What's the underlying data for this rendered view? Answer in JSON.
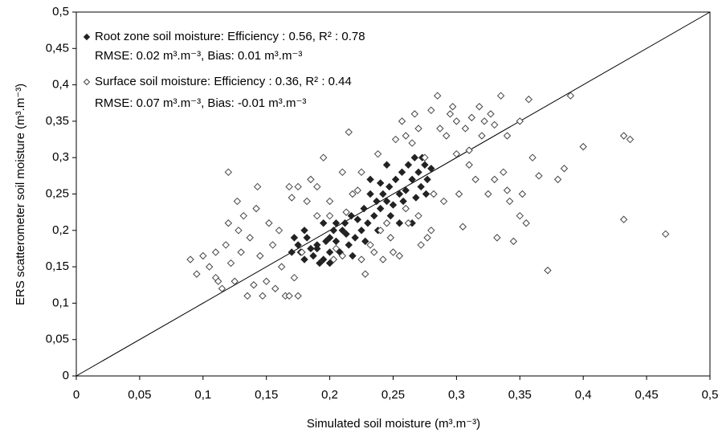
{
  "chart_data": {
    "type": "scatter",
    "x_label": "Simulated soil moisture (m³.m⁻³)",
    "y_label": "ERS scatterometer soil moisture (m³.m⁻³)",
    "xlim": [
      0,
      0.5
    ],
    "ylim": [
      0,
      0.5
    ],
    "xticks": [
      0,
      {
        "value": 0.05,
        "label": "0,05"
      },
      {
        "value": 0.1,
        "label": "0,1"
      },
      {
        "value": 0.15,
        "label": "0,15"
      },
      {
        "value": 0.2,
        "label": "0,2"
      },
      {
        "value": 0.25,
        "label": "0,25"
      },
      {
        "value": 0.3,
        "label": "0,3"
      },
      {
        "value": 0.35,
        "label": "0,35"
      },
      {
        "value": 0.4,
        "label": "0,4"
      },
      {
        "value": 0.45,
        "label": "0,45"
      },
      {
        "value": 0.5,
        "label": "0,5"
      }
    ],
    "yticks": [
      0,
      {
        "value": 0.05,
        "label": "0,05"
      },
      {
        "value": 0.1,
        "label": "0,1"
      },
      {
        "value": 0.15,
        "label": "0,15"
      },
      {
        "value": 0.2,
        "label": "0,2"
      },
      {
        "value": 0.25,
        "label": "0,25"
      },
      {
        "value": 0.3,
        "label": "0,3"
      },
      {
        "value": 0.35,
        "label": "0,35"
      },
      {
        "value": 0.4,
        "label": "0,4"
      },
      {
        "value": 0.45,
        "label": "0,45"
      },
      {
        "value": 0.5,
        "label": "0,5"
      }
    ],
    "identity_line": true,
    "legend_position": "upper-left",
    "series": [
      {
        "name": "Root zone soil moisture: Efficiency : 0.56, R² : 0.78",
        "color": "#222222",
        "marker": "filled-diamond",
        "x": [
          0.175,
          0.177,
          0.18,
          0.182,
          0.185,
          0.187,
          0.19,
          0.192,
          0.195,
          0.197,
          0.2,
          0.2,
          0.203,
          0.205,
          0.208,
          0.21,
          0.212,
          0.215,
          0.217,
          0.22,
          0.222,
          0.225,
          0.227,
          0.23,
          0.232,
          0.235,
          0.237,
          0.24,
          0.242,
          0.245,
          0.247,
          0.25,
          0.252,
          0.255,
          0.257,
          0.26,
          0.262,
          0.265,
          0.267,
          0.27,
          0.272,
          0.275,
          0.277,
          0.28,
          0.18,
          0.19,
          0.195,
          0.205,
          0.213,
          0.218,
          0.228,
          0.238,
          0.248,
          0.258,
          0.268,
          0.265,
          0.255,
          0.245,
          0.273,
          0.276,
          0.17,
          0.172,
          0.2,
          0.232,
          0.24
        ],
        "values": [
          0.18,
          0.17,
          0.16,
          0.19,
          0.175,
          0.165,
          0.18,
          0.155,
          0.16,
          0.185,
          0.17,
          0.19,
          0.2,
          0.185,
          0.17,
          0.2,
          0.21,
          0.18,
          0.22,
          0.19,
          0.215,
          0.2,
          0.23,
          0.21,
          0.25,
          0.22,
          0.24,
          0.23,
          0.25,
          0.24,
          0.26,
          0.235,
          0.27,
          0.25,
          0.28,
          0.255,
          0.29,
          0.27,
          0.3,
          0.28,
          0.26,
          0.29,
          0.27,
          0.285,
          0.2,
          0.175,
          0.21,
          0.21,
          0.195,
          0.165,
          0.185,
          0.2,
          0.22,
          0.24,
          0.245,
          0.21,
          0.21,
          0.29,
          0.3,
          0.25,
          0.17,
          0.19,
          0.155,
          0.27,
          0.265
        ]
      },
      {
        "name": "Surface soil moisture:  Efficiency : 0.36, R² : 0.44",
        "color": "#444444",
        "marker": "open-diamond",
        "x": [
          0.09,
          0.095,
          0.1,
          0.105,
          0.11,
          0.11,
          0.112,
          0.115,
          0.118,
          0.12,
          0.12,
          0.122,
          0.125,
          0.127,
          0.128,
          0.13,
          0.132,
          0.135,
          0.137,
          0.14,
          0.142,
          0.143,
          0.145,
          0.147,
          0.15,
          0.152,
          0.155,
          0.157,
          0.16,
          0.162,
          0.165,
          0.168,
          0.17,
          0.172,
          0.175,
          0.178,
          0.182,
          0.185,
          0.19,
          0.195,
          0.2,
          0.203,
          0.205,
          0.21,
          0.213,
          0.215,
          0.218,
          0.222,
          0.225,
          0.228,
          0.232,
          0.235,
          0.238,
          0.24,
          0.242,
          0.245,
          0.248,
          0.25,
          0.252,
          0.255,
          0.257,
          0.26,
          0.262,
          0.265,
          0.267,
          0.27,
          0.272,
          0.275,
          0.277,
          0.28,
          0.282,
          0.285,
          0.287,
          0.29,
          0.292,
          0.295,
          0.297,
          0.3,
          0.302,
          0.305,
          0.307,
          0.31,
          0.312,
          0.315,
          0.318,
          0.32,
          0.322,
          0.325,
          0.327,
          0.33,
          0.332,
          0.335,
          0.337,
          0.34,
          0.342,
          0.345,
          0.35,
          0.352,
          0.355,
          0.357,
          0.36,
          0.365,
          0.372,
          0.38,
          0.385,
          0.39,
          0.4,
          0.432,
          0.432,
          0.437,
          0.465,
          0.28,
          0.27,
          0.26,
          0.3,
          0.31,
          0.33,
          0.34,
          0.35,
          0.175,
          0.168,
          0.19,
          0.2,
          0.21,
          0.225
        ],
        "values": [
          0.16,
          0.14,
          0.165,
          0.15,
          0.135,
          0.17,
          0.13,
          0.12,
          0.18,
          0.28,
          0.21,
          0.155,
          0.13,
          0.24,
          0.2,
          0.17,
          0.22,
          0.11,
          0.19,
          0.125,
          0.23,
          0.26,
          0.165,
          0.11,
          0.13,
          0.21,
          0.18,
          0.12,
          0.2,
          0.15,
          0.11,
          0.26,
          0.245,
          0.135,
          0.26,
          0.17,
          0.24,
          0.27,
          0.22,
          0.3,
          0.24,
          0.16,
          0.175,
          0.165,
          0.225,
          0.335,
          0.25,
          0.255,
          0.16,
          0.14,
          0.18,
          0.17,
          0.305,
          0.2,
          0.16,
          0.21,
          0.19,
          0.17,
          0.325,
          0.165,
          0.35,
          0.33,
          0.21,
          0.32,
          0.36,
          0.34,
          0.18,
          0.3,
          0.19,
          0.365,
          0.25,
          0.385,
          0.34,
          0.24,
          0.33,
          0.36,
          0.37,
          0.35,
          0.25,
          0.205,
          0.34,
          0.31,
          0.355,
          0.27,
          0.37,
          0.33,
          0.35,
          0.25,
          0.36,
          0.27,
          0.19,
          0.385,
          0.28,
          0.255,
          0.24,
          0.185,
          0.35,
          0.25,
          0.21,
          0.38,
          0.3,
          0.275,
          0.145,
          0.27,
          0.285,
          0.385,
          0.315,
          0.33,
          0.215,
          0.325,
          0.195,
          0.2,
          0.22,
          0.23,
          0.305,
          0.29,
          0.345,
          0.33,
          0.22,
          0.11,
          0.11,
          0.26,
          0.22,
          0.28,
          0.28
        ]
      }
    ],
    "annotations": [
      "RMSE: 0.02 m³.m⁻³, Bias:  0.01 m³.m⁻³",
      "RMSE: 0.07 m³.m⁻³, Bias:  -0.01 m³.m⁻³"
    ]
  }
}
